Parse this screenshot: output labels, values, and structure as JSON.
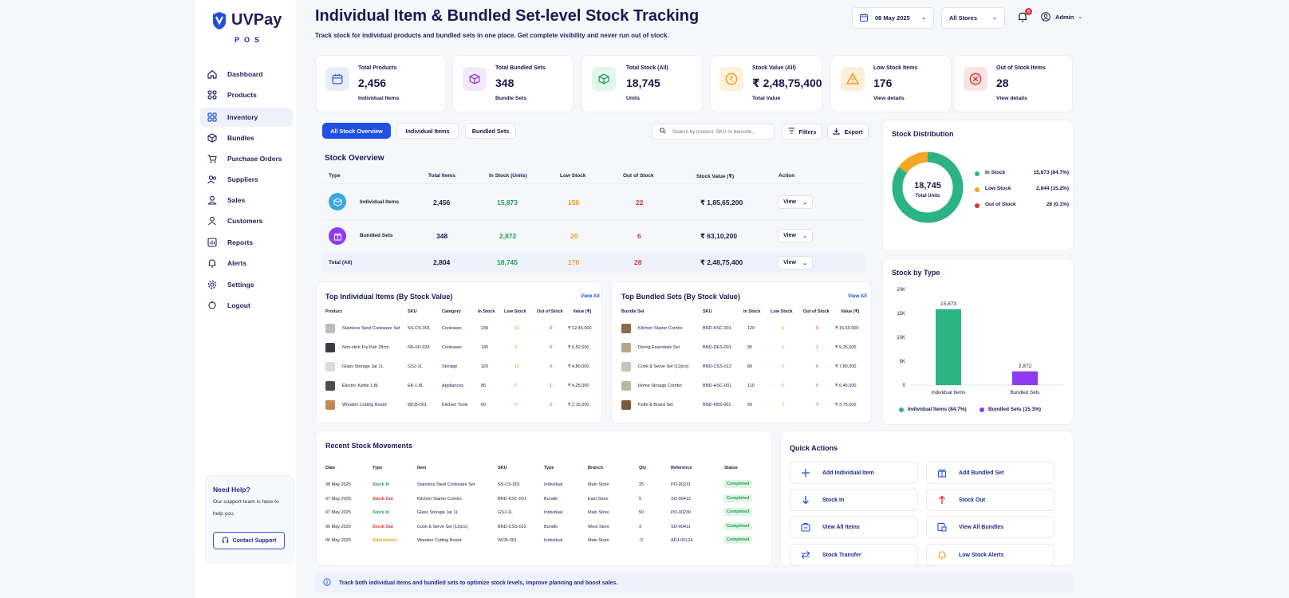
{
  "app": {
    "brand": "UVPay",
    "sub": "POS"
  },
  "sidebar": {
    "items": [
      {
        "label": "Dashboard"
      },
      {
        "label": "Products"
      },
      {
        "label": "Inventory"
      },
      {
        "label": "Bundles"
      },
      {
        "label": "Purchase Orders"
      },
      {
        "label": "Suppliers"
      },
      {
        "label": "Sales"
      },
      {
        "label": "Customers"
      },
      {
        "label": "Reports"
      },
      {
        "label": "Alerts"
      },
      {
        "label": "Settings"
      },
      {
        "label": "Logout"
      }
    ],
    "help": {
      "title": "Need Help?",
      "text1": "Our support team is here to",
      "text2": "help you.",
      "button": "Contact Support"
    }
  },
  "header": {
    "title": "Individual Item & Bundled Set-level Stock Tracking",
    "subtitle": "Track stock for individual products and bundled sets in one place. Get complete visibility and never run out of stock.",
    "date": "08 May 2025",
    "store": "All Stores",
    "notif_count": "6",
    "user": "Admin"
  },
  "stats": [
    {
      "label": "Total Products",
      "value": "2,456",
      "sub": "Individual Items",
      "color": "#3d5bd9"
    },
    {
      "label": "Total Bundled Sets",
      "value": "348",
      "sub": "Bundle Sets",
      "color": "#8e3bd9"
    },
    {
      "label": "Total Stock (All)",
      "value": "18,745",
      "sub": "Units",
      "color": "#1f9d57"
    },
    {
      "label": "Stock Value (All)",
      "value": "₹ 2,48,75,400",
      "sub": "Total Value",
      "color": "#e8a21b"
    },
    {
      "label": "Low Stock Items",
      "value": "176",
      "sub": "View details",
      "color": "#f29a1a"
    },
    {
      "label": "Out of Stock Items",
      "value": "28",
      "sub": "View details",
      "color": "#e03131"
    }
  ],
  "tabs": {
    "all": "All Stock Overview",
    "items": "Individual Items",
    "bundles": "Bundled Sets"
  },
  "search": {
    "placeholder": "Search by product, SKU or barcode..."
  },
  "toolbar": {
    "filters": "Filters",
    "export": "Export"
  },
  "overview": {
    "title": "Stock Overview",
    "headers": [
      "Type",
      "Total Items",
      "In Stock (Units)",
      "Low Stock",
      "Out of Stock",
      "Stock Value (₹)",
      "Action"
    ],
    "rows": [
      {
        "type": "Individual Items",
        "total": "2,456",
        "instock": "15,873",
        "low": "156",
        "out": "22",
        "value": "₹ 1,85,65,200",
        "action": "View"
      },
      {
        "type": "Bundled Sets",
        "total": "348",
        "instock": "2,872",
        "low": "20",
        "out": "6",
        "value": "₹ 63,10,200",
        "action": "View"
      },
      {
        "type": "Total (All)",
        "total": "2,804",
        "instock": "18,745",
        "low": "176",
        "out": "28",
        "value": "₹ 2,48,75,400",
        "action": "View"
      }
    ]
  },
  "distribution": {
    "title": "Stock Distribution",
    "center_value": "18,745",
    "center_label": "Total Units",
    "legend": [
      {
        "label": "In Stock",
        "value": "15,873 (84.7%)",
        "color": "#2bb384",
        "share": 84.7
      },
      {
        "label": "Low Stock",
        "value": "2,844 (15.2%)",
        "color": "#f5a623",
        "share": 15.2
      },
      {
        "label": "Out of Stock",
        "value": "28 (0.1%)",
        "color": "#e03131",
        "share": 0.1
      }
    ]
  },
  "chart_data": {
    "type": "bar",
    "title": "Stock by Type",
    "categories": [
      "Individual Items",
      "Bundled Sets"
    ],
    "values": [
      15873,
      2872
    ],
    "value_labels": [
      "15,873",
      "2,872"
    ],
    "ytick_labels": [
      "20K",
      "15K",
      "10K",
      "5K",
      "0"
    ],
    "ylim": [
      0,
      20000
    ],
    "colors": [
      "#2bb384",
      "#8e3bf0"
    ],
    "legend": [
      "Individual Items (84.7%)",
      "Bundled Sets (15.3%)"
    ]
  },
  "top_items": {
    "title": "Top Individual Items (By Stock Value)",
    "view_all": "View All",
    "headers": [
      "Product",
      "SKU",
      "Category",
      "In Stock",
      "Low Stock",
      "Out of Stock",
      "Value (₹)"
    ],
    "rows": [
      {
        "name": "Stainless Steel Cookware Set",
        "sku": "SS-CS-001",
        "cat": "Cookware",
        "in": "230",
        "low": "10",
        "out": "0",
        "val": "₹ 12,45,000"
      },
      {
        "name": "Non-stick Fry Pan 28cm",
        "sku": "NS-FP-028",
        "cat": "Cookware",
        "in": "145",
        "low": "8",
        "out": "0",
        "val": "₹ 6,52,500"
      },
      {
        "name": "Glass Storage Jar 1L",
        "sku": "GSJ-1L",
        "cat": "Storage",
        "in": "320",
        "low": "15",
        "out": "0",
        "val": "₹ 4,80,000"
      },
      {
        "name": "Electric Kettle 1.8L",
        "sku": "EK-1.8L",
        "cat": "Appliances",
        "in": "85",
        "low": "6",
        "out": "1",
        "val": "₹ 4,25,000"
      },
      {
        "name": "Wooden Cutting Board",
        "sku": "WCB-001",
        "cat": "Kitchen Tools",
        "in": "60",
        "low": "4",
        "out": "2",
        "val": "₹ 2,15,000"
      }
    ]
  },
  "top_bundles": {
    "title": "Top Bundled Sets (By Stock Value)",
    "view_all": "View All",
    "headers": [
      "Bundle Set",
      "SKU",
      "In Stock",
      "Low Stock",
      "Out of Stock",
      "Value (₹)"
    ],
    "rows": [
      {
        "name": "Kitchen Starter Combo",
        "sku": "BND-KSC-001",
        "in": "120",
        "low": "6",
        "out": "0",
        "val": "₹ 15,60,000"
      },
      {
        "name": "Dining Essentials Set",
        "sku": "BND-DES-001",
        "in": "95",
        "low": "5",
        "out": "1",
        "val": "₹ 9,25,000"
      },
      {
        "name": "Cook & Serve Set (12pcs)",
        "sku": "BND-CSS-012",
        "in": "80",
        "low": "3",
        "out": "0",
        "val": "₹ 7,80,000"
      },
      {
        "name": "Home Storage Combo",
        "sku": "BND-HSC-001",
        "in": "110",
        "low": "6",
        "out": "0",
        "val": "₹ 6,45,000"
      },
      {
        "name": "Knife & Board Set",
        "sku": "BND-KBS-001",
        "in": "60",
        "low": "2",
        "out": "1",
        "val": "₹ 3,75,000"
      }
    ]
  },
  "movements": {
    "title": "Recent Stock Movements",
    "headers": [
      "Date",
      "Type",
      "Item",
      "SKU",
      "Type",
      "Branch",
      "Qty",
      "Reference",
      "Status"
    ],
    "rows": [
      {
        "date": "08 May 2025",
        "type": "Stock In",
        "item": "Stainless Steel Cookware Set",
        "sku": "SS-CS-001",
        "kind": "Individual",
        "branch": "Main Store",
        "qty": "25",
        "ref": "PO-00231",
        "status": "Completed",
        "tcolor": "#1f9d57"
      },
      {
        "date": "07 May 2025",
        "type": "Stock Out",
        "item": "Kitchen Starter Combo",
        "sku": "BND-KSC-001",
        "kind": "Bundle",
        "branch": "East Store",
        "qty": "5",
        "ref": "SO-00412",
        "status": "Completed",
        "tcolor": "#e03131"
      },
      {
        "date": "07 May 2025",
        "type": "Stock In",
        "item": "Glass Storage Jar 1L",
        "sku": "GSJ-1L",
        "kind": "Individual",
        "branch": "Main Store",
        "qty": "50",
        "ref": "PO-00230",
        "status": "Completed",
        "tcolor": "#1f9d57"
      },
      {
        "date": "06 May 2025",
        "type": "Stock Out",
        "item": "Cook & Serve Set (12pcs)",
        "sku": "BND-CSS-012",
        "kind": "Bundle",
        "branch": "West Store",
        "qty": "3",
        "ref": "SO-00411",
        "status": "Completed",
        "tcolor": "#e03131"
      },
      {
        "date": "06 May 2025",
        "type": "Adjustment",
        "item": "Wooden Cutting Board",
        "sku": "WCB-001",
        "kind": "Individual",
        "branch": "Main Store",
        "qty": "-2",
        "ref": "ADJ-00124",
        "status": "Completed",
        "tcolor": "#f29a1a"
      }
    ]
  },
  "quick_actions": {
    "title": "Quick Actions",
    "items": [
      {
        "label": "Add Individual Item",
        "icon": "plus-icon"
      },
      {
        "label": "Add Bundled Set",
        "icon": "gift-icon"
      },
      {
        "label": "Stock In",
        "icon": "arrow-down-icon"
      },
      {
        "label": "Stock Out",
        "icon": "arrow-up-icon"
      },
      {
        "label": "View All Items",
        "icon": "items-icon"
      },
      {
        "label": "View All Bundles",
        "icon": "bundles-icon"
      },
      {
        "label": "Stock Transfer",
        "icon": "transfer-icon"
      },
      {
        "label": "Low Stock Alerts",
        "icon": "bell-icon"
      }
    ]
  },
  "footer": {
    "info": "Track both individual items and bundled sets to optimize stock levels, improve planning and boost sales."
  }
}
